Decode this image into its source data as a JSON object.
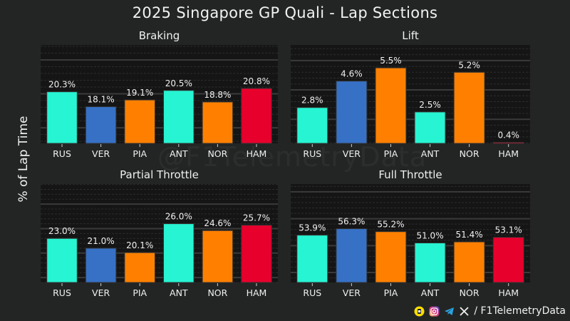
{
  "header": {
    "title": "2025 Singapore GP Quali - Lap Sections"
  },
  "y_axis_label": "% of Lap Time",
  "watermark": "@F1TelemetryData",
  "footer": {
    "handle": "/ F1TelemetryData",
    "icons": [
      "buymeacoffee-icon",
      "instagram-icon",
      "telegram-icon",
      "x-icon"
    ]
  },
  "colors": {
    "background": "#232525",
    "plot_background": "#151515",
    "RUS": "#27F4D2",
    "VER": "#3671C6",
    "PIA": "#FF8000",
    "ANT": "#27F4D2",
    "NOR": "#FF8000",
    "HAM": "#E8002D"
  },
  "chart_data": [
    {
      "type": "bar",
      "title": "Braking",
      "categories": [
        "RUS",
        "VER",
        "PIA",
        "ANT",
        "NOR",
        "HAM"
      ],
      "values": [
        20.3,
        18.1,
        19.1,
        20.5,
        18.8,
        20.8
      ],
      "labels": [
        "20.3%",
        "18.1%",
        "19.1%",
        "20.5%",
        "18.8%",
        "20.8%"
      ],
      "ylim": [
        12.7,
        27.2
      ],
      "xlabel": "",
      "ylabel": "% of Lap Time",
      "grid": true
    },
    {
      "type": "bar",
      "title": "Lift",
      "categories": [
        "RUS",
        "VER",
        "PIA",
        "ANT",
        "NOR",
        "HAM"
      ],
      "values": [
        2.8,
        4.6,
        5.5,
        2.5,
        5.2,
        0.4
      ],
      "labels": [
        "2.8%",
        "4.6%",
        "5.5%",
        "2.5%",
        "5.2%",
        "0.4%"
      ],
      "ylim": [
        0.36,
        7.06
      ],
      "xlabel": "",
      "ylabel": "% of Lap Time",
      "grid": true
    },
    {
      "type": "bar",
      "title": "Partial Throttle",
      "categories": [
        "RUS",
        "VER",
        "PIA",
        "ANT",
        "NOR",
        "HAM"
      ],
      "values": [
        23.0,
        21.0,
        20.1,
        26.0,
        24.6,
        25.7
      ],
      "labels": [
        "23.0%",
        "21.0%",
        "20.1%",
        "26.0%",
        "24.6%",
        "25.7%"
      ],
      "ylim": [
        14.0,
        34.1
      ],
      "xlabel": "",
      "ylabel": "% of Lap Time",
      "grid": true
    },
    {
      "type": "bar",
      "title": "Full Throttle",
      "categories": [
        "RUS",
        "VER",
        "PIA",
        "ANT",
        "NOR",
        "HAM"
      ],
      "values": [
        53.9,
        56.3,
        55.2,
        51.0,
        51.4,
        53.1
      ],
      "labels": [
        "53.9%",
        "56.3%",
        "55.2%",
        "51.0%",
        "51.4%",
        "53.1%"
      ],
      "ylim": [
        36.3,
        72.9
      ],
      "xlabel": "",
      "ylabel": "% of Lap Time",
      "grid": true
    }
  ]
}
